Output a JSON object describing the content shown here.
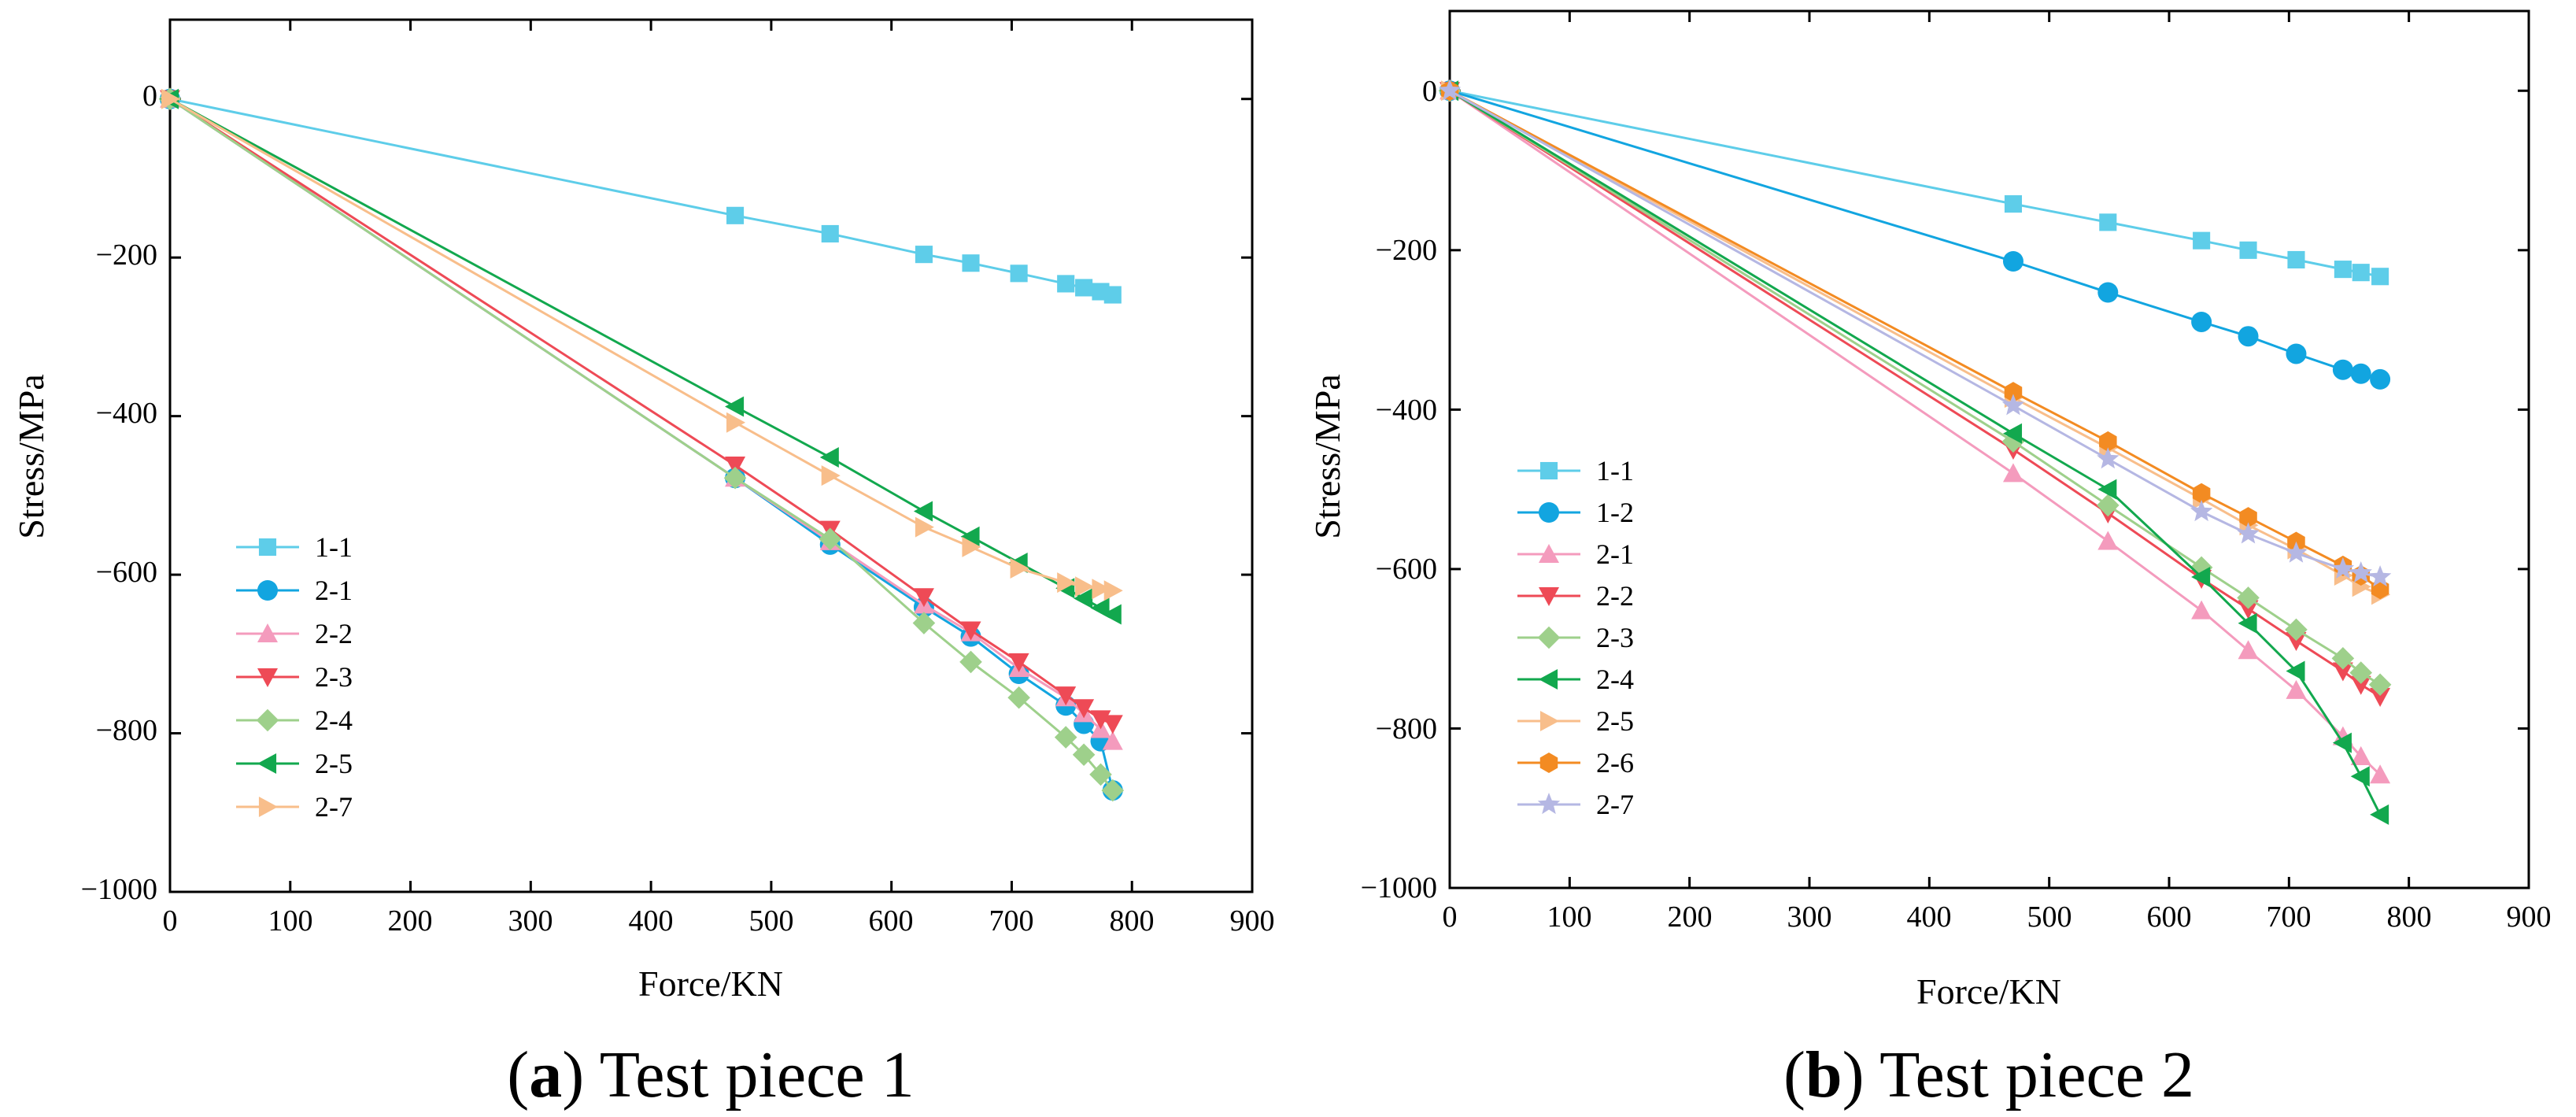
{
  "chart_data": [
    {
      "type": "line",
      "caption": {
        "open": "(",
        "letter": "a",
        "close": ")",
        "text": " Test piece 1"
      },
      "xlabel": "Force/KN",
      "ylabel": "Stress/MPa",
      "xlim": [
        0,
        900
      ],
      "ylim": [
        -1000,
        100
      ],
      "xticks": [
        0,
        100,
        200,
        300,
        400,
        500,
        600,
        700,
        800,
        900
      ],
      "yticks": [
        0,
        -200,
        -400,
        -600,
        -800,
        -1000
      ],
      "xtick_labels": [
        "0",
        "100",
        "200",
        "300",
        "400",
        "500",
        "600",
        "700",
        "800",
        "900"
      ],
      "ytick_labels": [
        "0",
        "−200",
        "−400",
        "−600",
        "−800",
        "−1000"
      ],
      "legend_position": "bottom-left",
      "x": [
        0,
        470,
        549,
        627,
        666,
        706,
        745,
        760,
        774,
        784
      ],
      "series": [
        {
          "name": "1-1",
          "color": "#5ecde9",
          "marker": "square",
          "values": [
            0,
            -147,
            -170,
            -196,
            -207,
            -220,
            -233,
            -238,
            -243,
            -247
          ]
        },
        {
          "name": "2-1",
          "color": "#12a5e0",
          "marker": "circle",
          "values": [
            0,
            -478,
            -562,
            -641,
            -678,
            -725,
            -765,
            -788,
            -810,
            -872
          ]
        },
        {
          "name": "2-2",
          "color": "#f49bbd",
          "marker": "triangle-up",
          "values": [
            0,
            -478,
            -558,
            -638,
            -673,
            -718,
            -755,
            -775,
            -795,
            -810
          ]
        },
        {
          "name": "2-3",
          "color": "#ee4a56",
          "marker": "triangle-down",
          "values": [
            0,
            -462,
            -543,
            -628,
            -670,
            -710,
            -752,
            -768,
            -782,
            -788
          ]
        },
        {
          "name": "2-4",
          "color": "#9ed08b",
          "marker": "diamond",
          "values": [
            0,
            -478,
            -555,
            -661,
            -710,
            -755,
            -805,
            -827,
            -852,
            -872
          ]
        },
        {
          "name": "2-5",
          "color": "#12a84e",
          "marker": "triangle-left",
          "values": [
            0,
            -388,
            -452,
            -520,
            -552,
            -585,
            -617,
            -630,
            -642,
            -650
          ]
        },
        {
          "name": "2-7",
          "color": "#f8be8b",
          "marker": "triangle-right",
          "values": [
            0,
            -408,
            -475,
            -540,
            -565,
            -592,
            -610,
            -615,
            -618,
            -620
          ]
        }
      ]
    },
    {
      "type": "line",
      "caption": {
        "open": "(",
        "letter": "b",
        "close": ")",
        "text": " Test piece 2"
      },
      "xlabel": "Force/KN",
      "ylabel": "Stress/MPa",
      "xlim": [
        0,
        900
      ],
      "ylim": [
        -1000,
        100
      ],
      "xticks": [
        0,
        100,
        200,
        300,
        400,
        500,
        600,
        700,
        800,
        900
      ],
      "yticks": [
        0,
        -200,
        -400,
        -600,
        -800,
        -1000
      ],
      "xtick_labels": [
        "0",
        "100",
        "200",
        "300",
        "400",
        "500",
        "600",
        "700",
        "800",
        "900"
      ],
      "ytick_labels": [
        "0",
        "−200",
        "−400",
        "−600",
        "−800",
        "−1000"
      ],
      "legend_position": "left",
      "x": [
        0,
        470,
        549,
        627,
        666,
        706,
        745,
        760,
        776
      ],
      "series": [
        {
          "name": "1-1",
          "color": "#5ecde9",
          "marker": "square",
          "values": [
            0,
            -142,
            -165,
            -188,
            -200,
            -212,
            -224,
            -228,
            -233
          ]
        },
        {
          "name": "1-2",
          "color": "#12a5e0",
          "marker": "circle",
          "values": [
            0,
            -214,
            -253,
            -290,
            -308,
            -330,
            -350,
            -355,
            -362
          ]
        },
        {
          "name": "2-1",
          "color": "#f49bbd",
          "marker": "triangle-up",
          "values": [
            0,
            -480,
            -565,
            -652,
            -702,
            -752,
            -810,
            -835,
            -858
          ]
        },
        {
          "name": "2-2",
          "color": "#ee4a56",
          "marker": "triangle-down",
          "values": [
            0,
            -450,
            -530,
            -612,
            -650,
            -690,
            -728,
            -745,
            -760
          ]
        },
        {
          "name": "2-3",
          "color": "#9ed08b",
          "marker": "diamond",
          "values": [
            0,
            -440,
            -520,
            -598,
            -636,
            -676,
            -712,
            -730,
            -745
          ]
        },
        {
          "name": "2-4",
          "color": "#12a84e",
          "marker": "triangle-left",
          "values": [
            0,
            -430,
            -500,
            -610,
            -668,
            -728,
            -818,
            -860,
            -908
          ]
        },
        {
          "name": "2-5",
          "color": "#f8be8b",
          "marker": "triangle-right",
          "values": [
            0,
            -385,
            -448,
            -512,
            -545,
            -575,
            -608,
            -622,
            -632
          ]
        },
        {
          "name": "2-6",
          "color": "#f38b22",
          "marker": "hexagon",
          "values": [
            0,
            -378,
            -440,
            -505,
            -535,
            -566,
            -596,
            -608,
            -625
          ]
        },
        {
          "name": "2-7",
          "color": "#b5b7e3",
          "marker": "star",
          "values": [
            0,
            -395,
            -462,
            -528,
            -556,
            -580,
            -600,
            -605,
            -610
          ]
        }
      ]
    }
  ]
}
